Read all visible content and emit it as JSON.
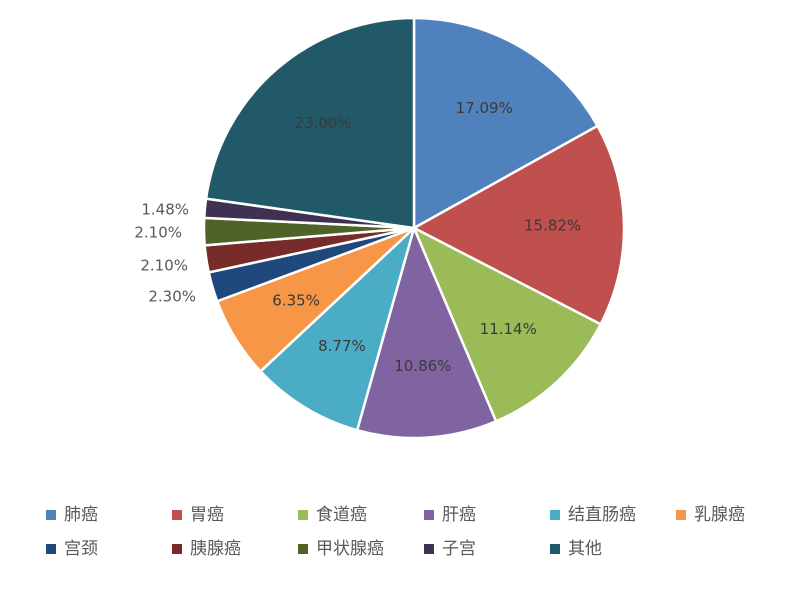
{
  "chart_data": {
    "type": "pie",
    "title": "",
    "categories": [
      "肺癌",
      "胃癌",
      "食道癌",
      "肝癌",
      "结直肠癌",
      "乳腺癌",
      "宫颈",
      "胰腺癌",
      "甲状腺癌",
      "子宫",
      "其他"
    ],
    "values": [
      17.09,
      15.82,
      11.14,
      10.86,
      8.77,
      6.35,
      2.3,
      2.1,
      2.1,
      1.48,
      23.0
    ],
    "labels": [
      "17.09%",
      "15.82%",
      "11.14%",
      "10.86%",
      "8.77%",
      "6.35%",
      "2.30%",
      "2.10%",
      "2.10%",
      "1.48%",
      "23.00%"
    ],
    "colors": [
      "#4F81BD",
      "#C0504D",
      "#9BBB59",
      "#8064A2",
      "#4BACC6",
      "#F79646",
      "#1F497D",
      "#772C2A",
      "#4F6228",
      "#3F3151",
      "#215968"
    ],
    "start_angle_deg": 0,
    "direction": "clockwise",
    "legend_position": "bottom"
  }
}
